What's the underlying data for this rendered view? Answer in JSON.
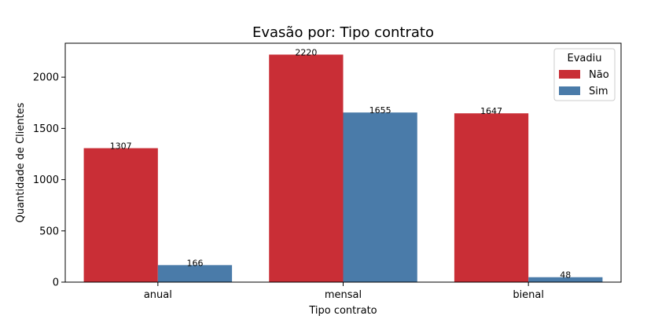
{
  "chart_data": {
    "type": "bar",
    "title": "Evasão por: Tipo contrato",
    "xlabel": "Tipo contrato",
    "ylabel": "Quantidade de Clientes",
    "categories": [
      "anual",
      "mensal",
      "bienal"
    ],
    "series": [
      {
        "name": "Não",
        "color": "#c92e36",
        "values": [
          1307,
          2220,
          1647
        ]
      },
      {
        "name": "Sim",
        "color": "#4a7ba9",
        "values": [
          166,
          1655,
          48
        ]
      }
    ],
    "ylim": [
      0,
      2331
    ],
    "yticks": [
      0,
      500,
      1000,
      1500,
      2000
    ],
    "legend": {
      "title": "Evadiu",
      "placement": "top-right"
    },
    "grid": false
  }
}
